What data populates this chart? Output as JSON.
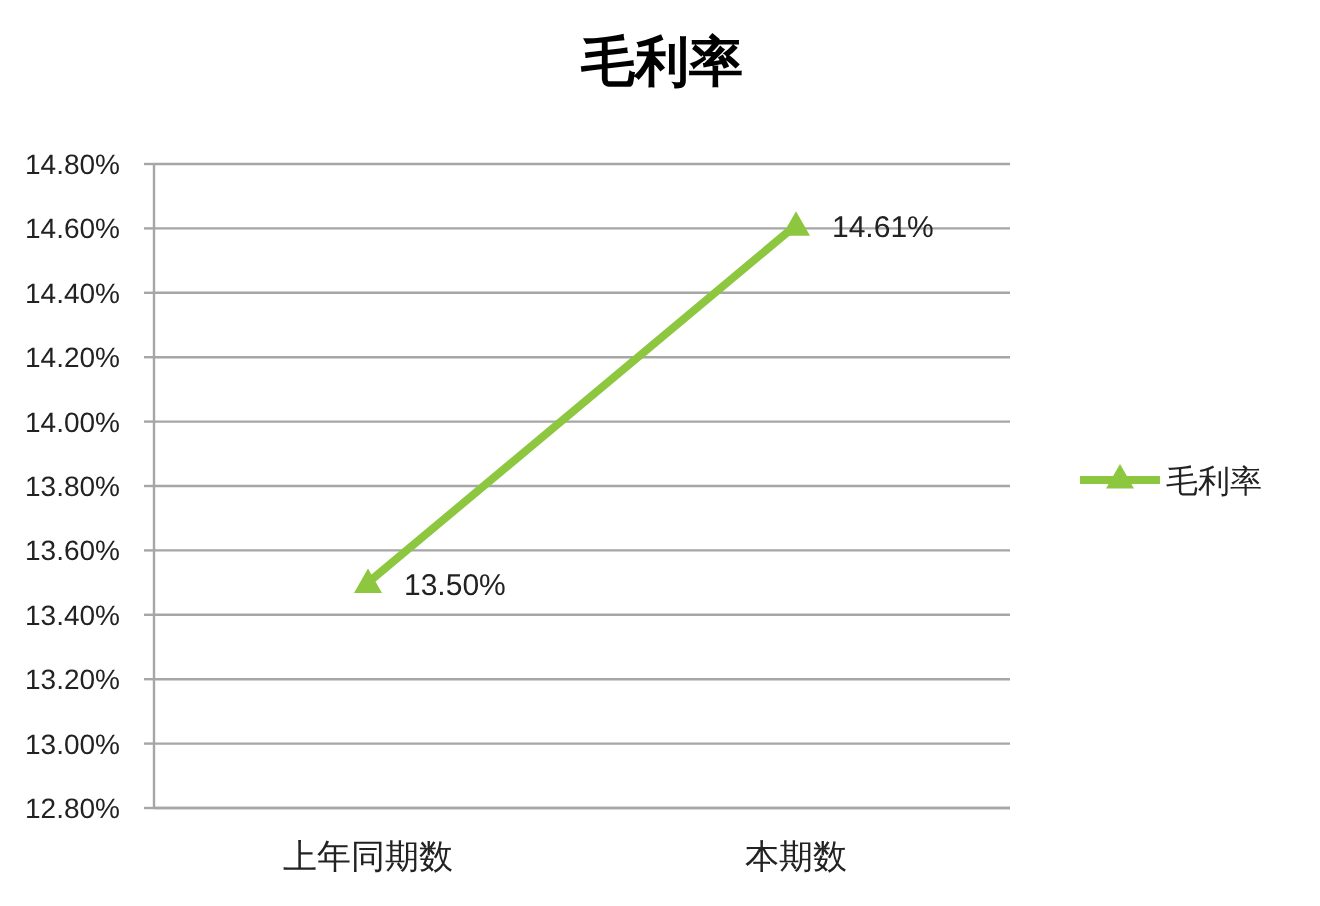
{
  "chart_data": {
    "type": "line",
    "title": "毛利率",
    "categories": [
      "上年同期数",
      "本期数"
    ],
    "series": [
      {
        "name": "毛利率",
        "color": "#8dc63f",
        "values": [
          13.5,
          14.61
        ],
        "value_labels": [
          "13.50%",
          "14.61%"
        ]
      }
    ],
    "ylim": [
      12.8,
      14.8
    ],
    "yticks": [
      {
        "value": 12.8,
        "label": "12.80%"
      },
      {
        "value": 13.0,
        "label": "13.00%"
      },
      {
        "value": 13.2,
        "label": "13.20%"
      },
      {
        "value": 13.4,
        "label": "13.40%"
      },
      {
        "value": 13.6,
        "label": "13.60%"
      },
      {
        "value": 13.8,
        "label": "13.80%"
      },
      {
        "value": 14.0,
        "label": "14.00%"
      },
      {
        "value": 14.2,
        "label": "14.20%"
      },
      {
        "value": 14.4,
        "label": "14.40%"
      },
      {
        "value": 14.6,
        "label": "14.60%"
      },
      {
        "value": 14.8,
        "label": "14.80%"
      }
    ],
    "grid": "y",
    "legend": "right",
    "marker": "triangle",
    "line_style": "solid"
  }
}
